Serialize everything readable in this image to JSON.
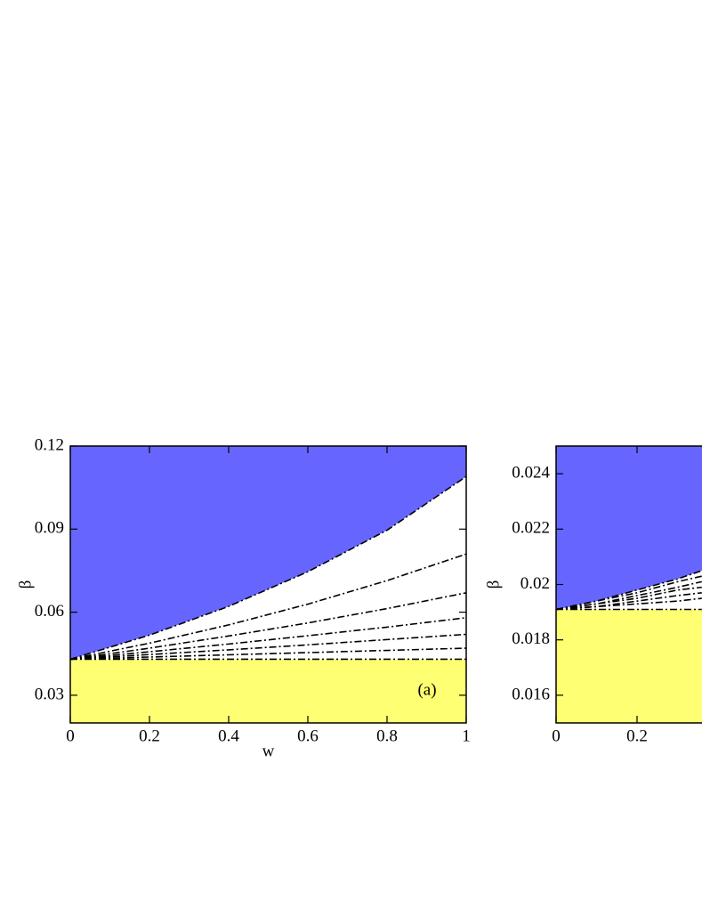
{
  "chart_data": [
    {
      "type": "line",
      "xlabel": "w",
      "ylabel": "β",
      "annotation": "(a)",
      "xlim": [
        0,
        1
      ],
      "ylim": [
        0.02,
        0.12
      ],
      "xticks": [
        0,
        0.2,
        0.4,
        0.6,
        0.8,
        1
      ],
      "yticks": [
        0.03,
        0.06,
        0.09,
        0.12
      ],
      "series": [
        {
          "color": "#000000",
          "fill_above": "#6666ff",
          "x": [
            0,
            0.2,
            0.4,
            0.6,
            0.8,
            1
          ],
          "values": [
            0.043,
            0.0517,
            0.0621,
            0.0746,
            0.0896,
            0.109
          ]
        },
        {
          "color": "#000000",
          "x": [
            0,
            0.2,
            0.4,
            0.6,
            0.8,
            1
          ],
          "values": [
            0.043,
            0.0488,
            0.0554,
            0.0629,
            0.0714,
            0.081
          ]
        },
        {
          "color": "#000000",
          "x": [
            0,
            0.2,
            0.4,
            0.6,
            0.8,
            1
          ],
          "values": [
            0.043,
            0.047,
            0.0514,
            0.0561,
            0.0613,
            0.067
          ]
        },
        {
          "color": "#000000",
          "x": [
            0,
            0.2,
            0.4,
            0.6,
            0.8,
            1
          ],
          "values": [
            0.043,
            0.0457,
            0.0485,
            0.0515,
            0.0546,
            0.058
          ]
        },
        {
          "color": "#000000",
          "x": [
            0,
            0.2,
            0.4,
            0.6,
            0.8,
            1
          ],
          "values": [
            0.043,
            0.0447,
            0.0464,
            0.0482,
            0.0501,
            0.052
          ]
        },
        {
          "color": "#000000",
          "x": [
            0,
            0.2,
            0.4,
            0.6,
            0.8,
            1
          ],
          "values": [
            0.043,
            0.0438,
            0.0446,
            0.0454,
            0.0462,
            0.047
          ]
        },
        {
          "color": "#000000",
          "fill_below": "#ffff73",
          "x": [
            0,
            0.2,
            0.4,
            0.6,
            0.8,
            1
          ],
          "values": [
            0.043,
            0.043,
            0.043,
            0.043,
            0.043,
            0.043
          ]
        }
      ]
    },
    {
      "type": "line",
      "ylabel": "β",
      "xlim": [
        0,
        1
      ],
      "ylim": [
        0.015,
        0.025
      ],
      "xticks": [
        0,
        0.2
      ],
      "yticks": [
        0.016,
        0.018,
        0.02,
        0.022,
        0.024
      ],
      "series": [
        {
          "color": "#000000",
          "fill_above": "#6666ff",
          "x": [
            0,
            0.1,
            0.2,
            0.3,
            0.36
          ],
          "values": [
            0.0191,
            0.0194,
            0.0198,
            0.0202,
            0.0205
          ]
        },
        {
          "color": "#000000",
          "x": [
            0,
            0.1,
            0.2,
            0.3,
            0.36
          ],
          "values": [
            0.0191,
            0.0194,
            0.0197,
            0.0201,
            0.0203
          ]
        },
        {
          "color": "#000000",
          "x": [
            0,
            0.1,
            0.2,
            0.3,
            0.36
          ],
          "values": [
            0.0191,
            0.0193,
            0.0196,
            0.0199,
            0.0201
          ]
        },
        {
          "color": "#000000",
          "x": [
            0,
            0.1,
            0.2,
            0.3,
            0.36
          ],
          "values": [
            0.0191,
            0.0193,
            0.0195,
            0.0198,
            0.0199
          ]
        },
        {
          "color": "#000000",
          "x": [
            0,
            0.1,
            0.2,
            0.3,
            0.36
          ],
          "values": [
            0.0191,
            0.0192,
            0.0194,
            0.0196,
            0.0197
          ]
        },
        {
          "color": "#000000",
          "x": [
            0,
            0.1,
            0.2,
            0.3,
            0.36
          ],
          "values": [
            0.0191,
            0.0192,
            0.0193,
            0.0194,
            0.0195
          ]
        },
        {
          "color": "#000000",
          "fill_below": "#ffff73",
          "x": [
            0,
            0.1,
            0.2,
            0.3,
            0.36
          ],
          "values": [
            0.0191,
            0.0191,
            0.0191,
            0.0191,
            0.0191
          ]
        }
      ]
    }
  ]
}
